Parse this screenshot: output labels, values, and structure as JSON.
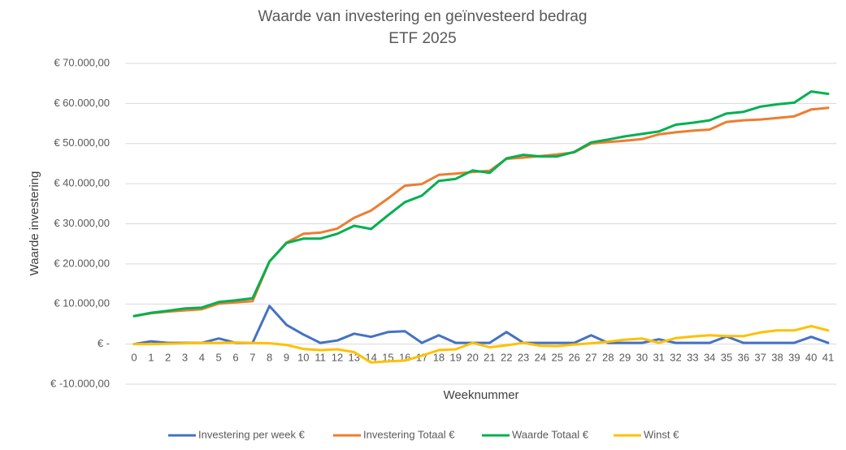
{
  "chart_data": {
    "type": "line",
    "title": "Waarde van investering en geïnvesteerd bedrag",
    "subtitle": "ETF 2025",
    "y_label": "Waarde investering",
    "x_label": "Weeknummer",
    "x": [
      0,
      1,
      2,
      3,
      4,
      5,
      6,
      7,
      8,
      9,
      10,
      11,
      12,
      13,
      14,
      15,
      16,
      17,
      18,
      19,
      20,
      21,
      22,
      23,
      24,
      25,
      26,
      27,
      28,
      29,
      30,
      31,
      32,
      33,
      34,
      35,
      36,
      37,
      38,
      39,
      40,
      41
    ],
    "series": [
      {
        "name": "Investering per week €",
        "color": "#4472c4",
        "values": [
          0,
          700,
          300,
          300,
          300,
          1400,
          300,
          300,
          9500,
          4800,
          2400,
          300,
          900,
          2600,
          1800,
          3000,
          3200,
          300,
          2200,
          300,
          300,
          300,
          3000,
          300,
          300,
          300,
          300,
          2200,
          300,
          300,
          300,
          1200,
          300,
          300,
          300,
          1900,
          300,
          300,
          300,
          300,
          1800,
          300
        ]
      },
      {
        "name": "Investering Totaal €",
        "color": "#ed7d31",
        "values": [
          7000,
          7700,
          8100,
          8400,
          8700,
          10100,
          10400,
          10700,
          20600,
          25300,
          27500,
          27800,
          28800,
          31500,
          33300,
          36300,
          39500,
          39900,
          42200,
          42500,
          42900,
          43200,
          46200,
          46500,
          46900,
          47300,
          47800,
          50000,
          50400,
          50700,
          51100,
          52300,
          52800,
          53200,
          53500,
          55400,
          55800,
          56000,
          56400,
          56800,
          58500,
          58900
        ]
      },
      {
        "name": "Waarde Totaal €",
        "color": "#00b050",
        "values": [
          7000,
          7800,
          8300,
          8900,
          9100,
          10500,
          10900,
          11400,
          20600,
          25200,
          26300,
          26300,
          27500,
          29500,
          28700,
          32100,
          35400,
          37000,
          40700,
          41200,
          43300,
          42700,
          46300,
          47200,
          46800,
          46800,
          47900,
          50300,
          51000,
          51800,
          52400,
          53000,
          54700,
          55200,
          55800,
          57500,
          57900,
          59200,
          59800,
          60200,
          63000,
          62400
        ]
      },
      {
        "name": "Winst €",
        "color": "#ffc000",
        "values": [
          0,
          0,
          100,
          200,
          300,
          300,
          400,
          300,
          200,
          -200,
          -1200,
          -1500,
          -1300,
          -2000,
          -4600,
          -4300,
          -4100,
          -2900,
          -1500,
          -1300,
          300,
          -800,
          -300,
          300,
          -400,
          -500,
          -100,
          200,
          600,
          1100,
          1400,
          300,
          1500,
          1900,
          2200,
          2000,
          2000,
          2900,
          3400,
          3400,
          4500,
          3400
        ]
      }
    ],
    "ylim": [
      -10000,
      70000
    ],
    "yticks": [
      {
        "value": -10000,
        "label": "€ -10.000,00"
      },
      {
        "value": 0,
        "label": "€ -"
      },
      {
        "value": 10000,
        "label": "€ 10.000,00"
      },
      {
        "value": 20000,
        "label": "€ 20.000,00"
      },
      {
        "value": 30000,
        "label": "€ 30.000,00"
      },
      {
        "value": 40000,
        "label": "€ 40.000,00"
      },
      {
        "value": 50000,
        "label": "€ 50.000,00"
      },
      {
        "value": 60000,
        "label": "€ 60.000,00"
      },
      {
        "value": 70000,
        "label": "€ 70.000,00"
      }
    ],
    "grid": true,
    "legend": "bottom"
  }
}
